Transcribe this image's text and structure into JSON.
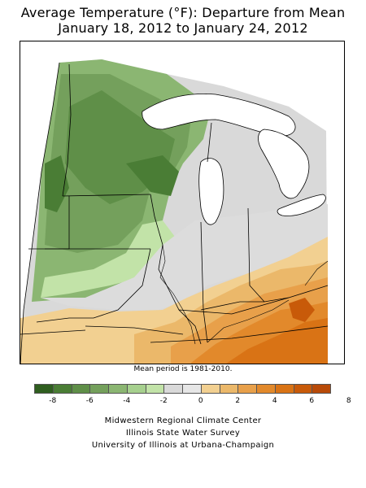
{
  "title": {
    "line1": "Average Temperature (°F): Departure from Mean",
    "line2": "January 18, 2012 to January 24, 2012"
  },
  "mean_period": "Mean period is 1981-2010.",
  "legend": {
    "colors": [
      "#2f5e1f",
      "#4a7d35",
      "#5f8f48",
      "#74a05c",
      "#8bb672",
      "#a6d08e",
      "#c2e3a8",
      "#d9d9d9",
      "#e6e6e6",
      "#f2d091",
      "#ebb86a",
      "#e8a04a",
      "#e2892b",
      "#d97315",
      "#c85a09",
      "#b84a08"
    ],
    "tick_labels": [
      "-8",
      "-6",
      "-4",
      "-2",
      "0",
      "2",
      "4",
      "6",
      "8"
    ]
  },
  "credits": [
    "Midwestern Regional Climate Center",
    "Illinois State Water Survey",
    "University of Illinois at Urbana-Champaign"
  ]
}
